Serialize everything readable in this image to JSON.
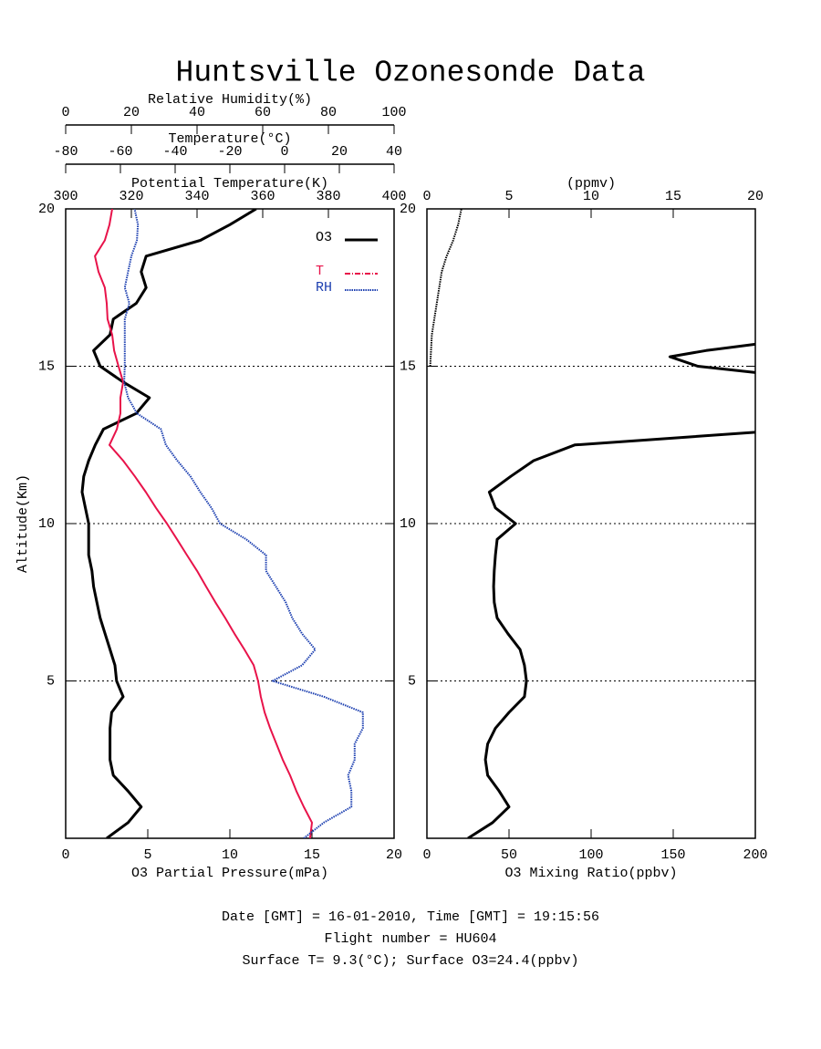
{
  "title": "Huntsville Ozonesonde Data",
  "notes": [
    "Date [GMT] = 16-01-2010,  Time [GMT] = 19:15:56",
    "Flight number = HU604",
    "Surface T= 9.3(°C); Surface O3=24.4(ppbv)"
  ],
  "chart_data": [
    {
      "type": "profile",
      "ylabel": "Altitude(Km)",
      "ylim": [
        0,
        20
      ],
      "yticks": [
        5,
        10,
        15,
        20
      ],
      "grid": true,
      "xlabel": "O3 Partial Pressure(mPa)",
      "xlim": [
        0,
        20
      ],
      "xticks": [
        0,
        5,
        10,
        15,
        20
      ],
      "top_axes": [
        {
          "label": "Relative Humidity(%)",
          "xlim": [
            0,
            100
          ],
          "xticks": [
            0,
            20,
            40,
            60,
            80,
            100
          ]
        },
        {
          "label": "Temperature(°C)",
          "xlim": [
            -80,
            40
          ],
          "xticks": [
            -80,
            -60,
            -40,
            -20,
            0,
            20,
            40
          ]
        },
        {
          "label": "Potential Temperature(K)",
          "xlim": [
            300,
            400
          ],
          "xticks": [
            300,
            320,
            340,
            360,
            380,
            400
          ]
        }
      ],
      "y": [
        0,
        0.5,
        1,
        1.5,
        2,
        2.5,
        3,
        3.5,
        4,
        4.5,
        5,
        5.5,
        6,
        6.5,
        7,
        7.5,
        8,
        8.5,
        9,
        9.5,
        10,
        10.5,
        11,
        11.5,
        12,
        12.5,
        13,
        13.5,
        14,
        14.5,
        15,
        15.5,
        16,
        16.5,
        17,
        17.5,
        18,
        18.5,
        19,
        19.5,
        20
      ],
      "series": [
        {
          "name": "O3",
          "color": "#000000",
          "values": [
            2.5,
            3.8,
            4.6,
            3.8,
            2.9,
            2.7,
            2.7,
            2.7,
            2.8,
            3.5,
            3.1,
            3.0,
            2.7,
            2.4,
            2.1,
            1.9,
            1.7,
            1.6,
            1.4,
            1.4,
            1.4,
            1.2,
            1.0,
            1.1,
            1.4,
            1.8,
            2.3,
            4.3,
            5.1,
            3.5,
            2.1,
            1.7,
            2.7,
            2.9,
            4.3,
            4.9,
            4.6,
            4.9,
            8.2,
            10,
            11.6
          ]
        },
        {
          "name": "T",
          "color": "#e8134a",
          "axis": 1,
          "values": [
            9.3,
            10,
            7,
            4.3,
            2,
            -0.7,
            -3,
            -5.3,
            -7.3,
            -8.7,
            -9.7,
            -11.3,
            -14.7,
            -18.3,
            -21.7,
            -25.3,
            -28.7,
            -32,
            -35.7,
            -39.3,
            -43,
            -47,
            -50.7,
            -54.7,
            -59,
            -64,
            -61.3,
            -60,
            -60,
            -59,
            -60.7,
            -62.3,
            -63,
            -64.7,
            -65,
            -65.7,
            -68,
            -69.3,
            -65.7,
            -64,
            -63
          ]
        },
        {
          "name": "RH",
          "color": "#1c3fb0",
          "axis": 0,
          "values": [
            72.5,
            78.6,
            87,
            87,
            86,
            88,
            88,
            90.5,
            90.5,
            78.6,
            63,
            72,
            76,
            72,
            69,
            67,
            64,
            61,
            61,
            55,
            47,
            44.4,
            41,
            38,
            34,
            30.5,
            29,
            21.7,
            19,
            17.8,
            18,
            18,
            18,
            18,
            19.4,
            18,
            19,
            20,
            21.7,
            22,
            21
          ]
        }
      ]
    },
    {
      "type": "profile",
      "ylim": [
        0,
        20
      ],
      "yticks": [
        5,
        10,
        15,
        20
      ],
      "grid": true,
      "xlabel": "O3 Mixing Ratio(ppbv)",
      "xlim": [
        0,
        200
      ],
      "xticks": [
        0,
        50,
        100,
        150,
        200
      ],
      "top_axes": [
        {
          "label": "(ppmv)",
          "xlim": [
            0,
            20
          ],
          "xticks": [
            0,
            5,
            10,
            15,
            20
          ]
        }
      ],
      "series": [
        {
          "color": "#000000",
          "y": [
            0,
            0.5,
            1,
            1.5,
            2,
            2.5,
            3,
            3.5,
            4,
            4.5,
            5,
            5.5,
            6,
            6.5,
            7,
            7.5,
            8,
            8.5,
            9,
            9.5,
            10,
            10.5,
            11,
            11.5,
            12,
            12.5,
            12.9,
            13.5,
            14.8,
            15,
            15.3,
            15.5,
            15.7
          ],
          "values": [
            25,
            40,
            50,
            44,
            37,
            35.6,
            37,
            41.7,
            50,
            59.4,
            60.6,
            59.4,
            56.7,
            49.4,
            42.8,
            41,
            40.6,
            41,
            41.7,
            42.8,
            54,
            41.7,
            38,
            51,
            65,
            90,
            200,
            null,
            200,
            165,
            148,
            170,
            200
          ]
        },
        {
          "color": "#000000",
          "axis": 0,
          "dotted": true,
          "y": [
            15,
            16,
            17,
            18,
            18.5,
            19,
            19.5,
            20
          ],
          "values": [
            0.2,
            0.3,
            0.6,
            0.9,
            1.2,
            1.6,
            1.9,
            2.1
          ]
        }
      ]
    }
  ]
}
